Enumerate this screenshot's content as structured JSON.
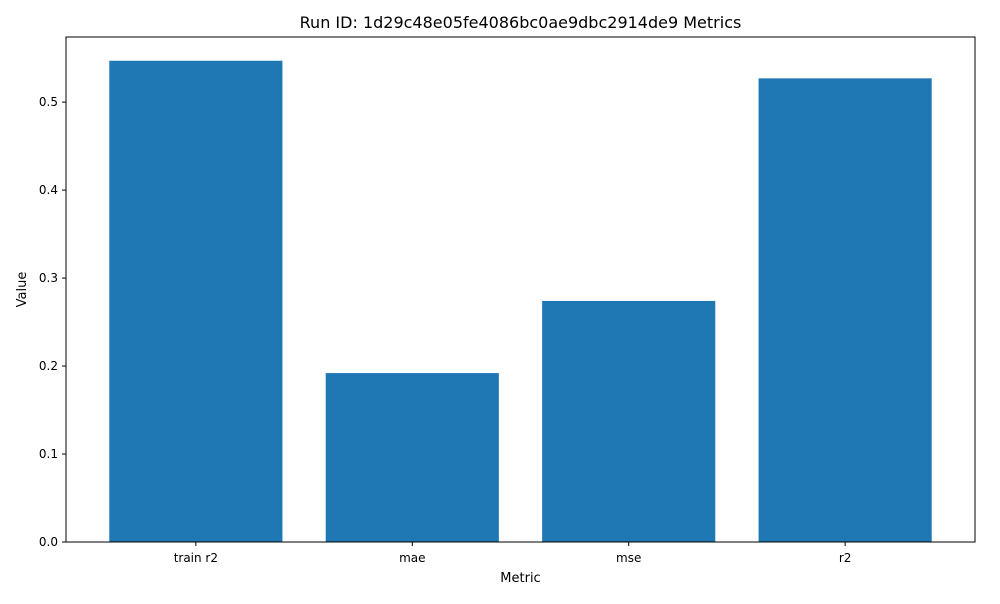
{
  "chart_data": {
    "type": "bar",
    "title": "Run ID: 1d29c48e05fe4086bc0ae9dbc2914de9 Metrics",
    "xlabel": "Metric",
    "ylabel": "Value",
    "categories": [
      "train r2",
      "mae",
      "mse",
      "r2"
    ],
    "values": [
      0.547,
      0.192,
      0.274,
      0.527
    ],
    "ylim": [
      0,
      0.574
    ],
    "yticks": [
      0.0,
      0.1,
      0.2,
      0.3,
      0.4,
      0.5
    ],
    "ytick_labels": [
      "0.0",
      "0.1",
      "0.2",
      "0.3",
      "0.4",
      "0.5"
    ],
    "bar_color": "#1f77b4",
    "grid": false,
    "legend": "none"
  }
}
